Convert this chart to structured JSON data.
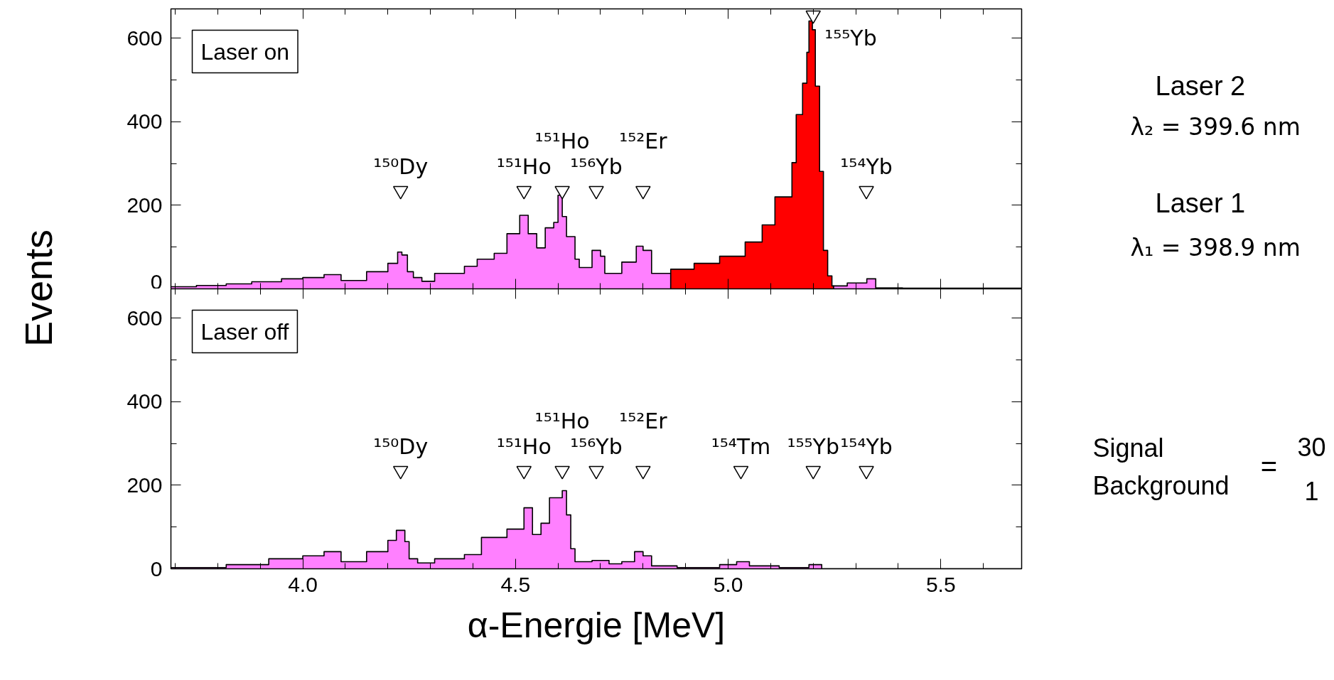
{
  "chart_data": [
    {
      "type": "area",
      "ylabel": "Events",
      "xlim": [
        3.69,
        5.69
      ],
      "ylim": [
        0,
        670
      ],
      "xticks": [
        {
          "value": 4.0,
          "label": null
        },
        {
          "value": 4.5,
          "label": null
        },
        {
          "value": 5.0,
          "label": null
        },
        {
          "value": 5.5,
          "label": null
        }
      ],
      "yticks": [
        0,
        200,
        400,
        600
      ],
      "tick_labels": "y",
      "series": [
        {
          "color": "#ff80ff",
          "x": [
            3.69,
            3.75,
            3.82,
            3.88,
            3.95,
            4.0,
            4.05,
            4.09,
            4.15,
            4.2,
            4.223,
            4.233,
            4.246,
            4.26,
            4.28,
            4.31,
            4.38,
            4.41,
            4.45,
            4.48,
            4.51,
            4.53,
            4.55,
            4.57,
            4.59,
            4.6,
            4.61,
            4.62,
            4.64,
            4.65,
            4.68,
            4.7,
            4.71,
            4.75,
            4.784,
            4.8,
            4.82,
            4.865
          ],
          "values": [
            5,
            8,
            12,
            17,
            24,
            27,
            34,
            20,
            41,
            61,
            88,
            81,
            41,
            27,
            18,
            37,
            54,
            71,
            85,
            132,
            176,
            132,
            98,
            146,
            159,
            224,
            173,
            125,
            71,
            51,
            92,
            78,
            37,
            64,
            102,
            92,
            37,
            30
          ]
        },
        {
          "color": "#ff0000",
          "x": [
            4.865,
            4.92,
            4.98,
            5.04,
            5.08,
            5.11,
            5.15,
            5.16,
            5.175,
            5.185,
            5.19,
            5.198,
            5.205,
            5.215,
            5.224,
            5.234,
            5.244,
            5.248
          ],
          "values": [
            47,
            61,
            78,
            112,
            153,
            220,
            302,
            417,
            492,
            566,
            641,
            620,
            485,
            281,
            92,
            31,
            7,
            7
          ]
        },
        {
          "color": "#ff80ff",
          "x": [
            5.248,
            5.28,
            5.326,
            5.347,
            5.41,
            5.69
          ],
          "values": [
            7,
            14,
            24,
            2,
            1,
            0
          ]
        },
        {
          "type": "scatter",
          "marker": "triangle",
          "color": "#ffffff",
          "x": [
            4.23,
            4.52,
            4.61,
            4.69,
            4.8,
            5.2,
            5.325
          ],
          "values": [
            235,
            235,
            235,
            235,
            235,
            655,
            235
          ],
          "value_labels": [
            "¹⁵⁰Dy",
            "¹⁵¹Ho",
            "¹⁵¹Ho",
            "¹⁵⁶Yb",
            "¹⁵²Er",
            "¹⁵⁵Yb",
            "¹⁵⁴Yb"
          ]
        }
      ],
      "annotations": [
        "Laser on"
      ]
    },
    {
      "type": "area",
      "xlabel": "α-Energie [MeV]",
      "xlim": [
        3.69,
        5.69
      ],
      "ylim": [
        0,
        670
      ],
      "xticks": [
        {
          "value": 4.0,
          "label": "4.0"
        },
        {
          "value": 4.5,
          "label": "4.5"
        },
        {
          "value": 5.0,
          "label": "5.0"
        },
        {
          "value": 5.5,
          "label": "5.5"
        }
      ],
      "yticks": [
        0,
        200,
        400,
        600
      ],
      "series": [
        {
          "color": "#ff80ff",
          "x": [
            3.69,
            3.82,
            3.92,
            4.0,
            4.05,
            4.09,
            4.15,
            4.2,
            4.22,
            4.24,
            4.25,
            4.27,
            4.31,
            4.38,
            4.42,
            4.48,
            4.52,
            4.54,
            4.56,
            4.58,
            4.61,
            4.62,
            4.63,
            4.64,
            4.68,
            4.72,
            4.75,
            4.78,
            4.8,
            4.82,
            4.88,
            4.98,
            5.02,
            5.05,
            5.12,
            5.19,
            5.22,
            5.28,
            5.69
          ],
          "values": [
            3,
            10,
            24,
            31,
            41,
            17,
            41,
            68,
            92,
            65,
            24,
            14,
            24,
            34,
            75,
            95,
            146,
            82,
            109,
            170,
            187,
            129,
            48,
            17,
            20,
            12,
            17,
            41,
            31,
            7,
            3,
            10,
            17,
            7,
            3,
            10,
            0,
            0,
            0
          ]
        },
        {
          "type": "scatter",
          "marker": "triangle",
          "color": "#ffffff",
          "x": [
            4.23,
            4.52,
            4.61,
            4.69,
            4.8,
            5.03,
            5.2,
            5.325
          ],
          "values": [
            235,
            235,
            235,
            235,
            235,
            235,
            235,
            235
          ],
          "value_labels": [
            "¹⁵⁰Dy",
            "¹⁵¹Ho",
            "¹⁵¹Ho",
            "¹⁵⁶Yb",
            "¹⁵²Er",
            "¹⁵⁴Tm",
            "¹⁵⁵Yb",
            "¹⁵⁴Yb"
          ]
        }
      ],
      "annotations": [
        "Laser off"
      ]
    },
    {
      "type": "other",
      "annotations": [
        "Laser 2",
        "λ₂ = 399.6 nm",
        "Laser 1",
        "λ₁ = 398.9 nm",
        "Signal",
        "Background",
        "=",
        "30",
        "1"
      ]
    }
  ]
}
